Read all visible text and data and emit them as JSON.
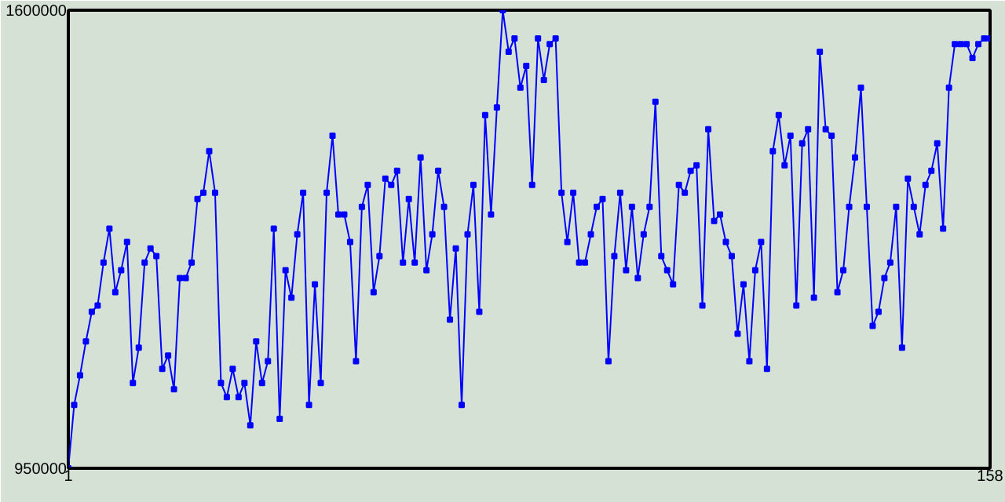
{
  "chart_data": {
    "type": "line",
    "marker": "square",
    "line_style": "solid",
    "x": [
      1,
      2,
      3,
      4,
      5,
      6,
      7,
      8,
      9,
      10,
      11,
      12,
      13,
      14,
      15,
      16,
      17,
      18,
      19,
      20,
      21,
      22,
      23,
      24,
      25,
      26,
      27,
      28,
      29,
      30,
      31,
      32,
      33,
      34,
      35,
      36,
      37,
      38,
      39,
      40,
      41,
      42,
      43,
      44,
      45,
      46,
      47,
      48,
      49,
      50,
      51,
      52,
      53,
      54,
      55,
      56,
      57,
      58,
      59,
      60,
      61,
      62,
      63,
      64,
      65,
      66,
      67,
      68,
      69,
      70,
      71,
      72,
      73,
      74,
      75,
      76,
      77,
      78,
      79,
      80,
      81,
      82,
      83,
      84,
      85,
      86,
      87,
      88,
      89,
      90,
      91,
      92,
      93,
      94,
      95,
      96,
      97,
      98,
      99,
      100,
      101,
      102,
      103,
      104,
      105,
      106,
      107,
      108,
      109,
      110,
      111,
      112,
      113,
      114,
      115,
      116,
      117,
      118,
      119,
      120,
      121,
      122,
      123,
      124,
      125,
      126,
      127,
      128,
      129,
      130,
      131,
      132,
      133,
      134,
      135,
      136,
      137,
      138,
      139,
      140,
      141,
      142,
      143,
      144,
      145,
      146,
      147,
      148,
      149,
      150,
      151,
      152,
      153,
      154,
      155,
      156,
      157,
      158
    ],
    "series": [
      {
        "color": "#0000ff",
        "values": [
          950000,
          1040000,
          1082000,
          1130000,
          1172000,
          1181000,
          1242000,
          1290000,
          1200000,
          1231000,
          1271000,
          1071000,
          1121000,
          1242000,
          1262000,
          1251000,
          1091000,
          1110000,
          1062000,
          1220000,
          1220000,
          1242000,
          1332000,
          1341000,
          1400000,
          1341000,
          1071000,
          1051000,
          1091000,
          1051000,
          1071000,
          1011000,
          1130000,
          1071000,
          1102000,
          1290000,
          1020000,
          1231000,
          1192000,
          1282000,
          1341000,
          1040000,
          1211000,
          1071000,
          1341000,
          1422000,
          1310000,
          1310000,
          1271000,
          1102000,
          1321000,
          1352000,
          1200000,
          1251000,
          1361000,
          1352000,
          1372000,
          1242000,
          1332000,
          1242000,
          1391000,
          1231000,
          1282000,
          1372000,
          1321000,
          1161000,
          1262000,
          1040000,
          1282000,
          1352000,
          1172000,
          1451000,
          1310000,
          1462000,
          1600000,
          1541000,
          1560000,
          1490000,
          1521000,
          1352000,
          1560000,
          1501000,
          1552000,
          1560000,
          1341000,
          1271000,
          1341000,
          1242000,
          1242000,
          1282000,
          1321000,
          1332000,
          1102000,
          1251000,
          1341000,
          1231000,
          1321000,
          1220000,
          1282000,
          1321000,
          1470000,
          1251000,
          1231000,
          1211000,
          1352000,
          1341000,
          1372000,
          1380000,
          1181000,
          1431000,
          1301000,
          1310000,
          1271000,
          1251000,
          1141000,
          1211000,
          1102000,
          1231000,
          1271000,
          1091000,
          1400000,
          1451000,
          1380000,
          1422000,
          1181000,
          1411000,
          1431000,
          1192000,
          1541000,
          1431000,
          1422000,
          1200000,
          1231000,
          1321000,
          1391000,
          1490000,
          1321000,
          1152000,
          1172000,
          1220000,
          1242000,
          1321000,
          1121000,
          1361000,
          1321000,
          1282000,
          1352000,
          1372000,
          1411000,
          1290000,
          1490000,
          1552000,
          1552000,
          1552000,
          1532000,
          1552000,
          1560000,
          1560000
        ]
      }
    ],
    "xlim": [
      1,
      158
    ],
    "xticks": [
      1,
      158
    ],
    "ylim": [
      950000,
      1600000
    ],
    "yticks": [
      950000,
      1600000
    ]
  }
}
